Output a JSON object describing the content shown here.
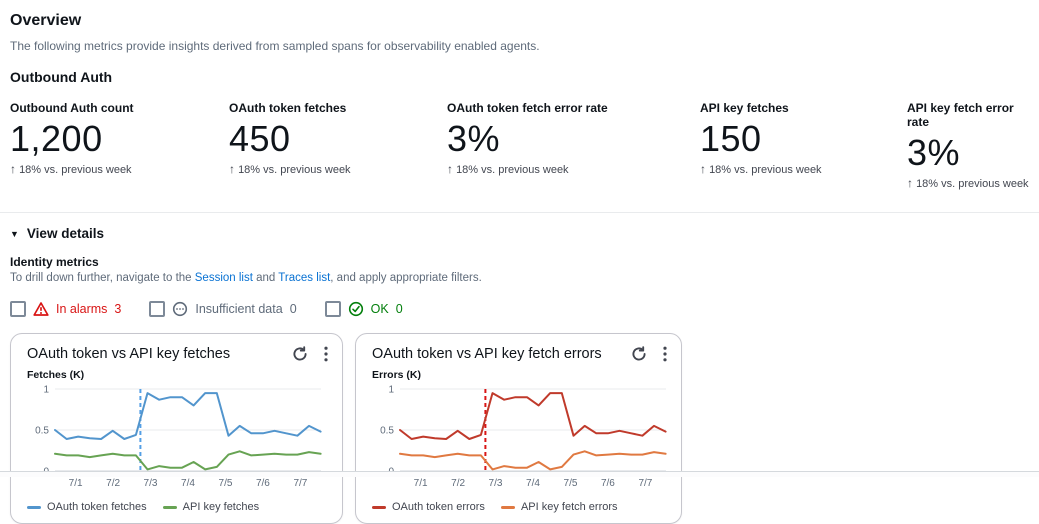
{
  "page": {
    "title": "Overview",
    "description": "The following metrics provide insights derived from sampled spans for observability enabled agents.",
    "section_title": "Outbound Auth"
  },
  "metrics": [
    {
      "label": "Outbound Auth count",
      "value": "1,200",
      "trend_arrow": "↑",
      "trend": "18% vs. previous week"
    },
    {
      "label": "OAuth token fetches",
      "value": "450",
      "trend_arrow": "↑",
      "trend": "18% vs. previous week"
    },
    {
      "label": "OAuth token fetch error rate",
      "value": "3%",
      "trend_arrow": "↑",
      "trend": "18% vs. previous week"
    },
    {
      "label": "API key fetches",
      "value": "150",
      "trend_arrow": "↑",
      "trend": "18% vs. previous week"
    },
    {
      "label": "API key fetch error rate",
      "value": "3%",
      "trend_arrow": "↑",
      "trend": "18% vs. previous week"
    }
  ],
  "details": {
    "expander_caret": "▼",
    "expander_label": "View details",
    "subsection_title": "Identity metrics",
    "drill_prefix": "To drill down further, navigate to the ",
    "link_session": "Session list",
    "drill_and": " and ",
    "link_traces": "Traces list",
    "drill_suffix": ", and apply appropriate filters."
  },
  "filters": [
    {
      "label": "In alarms",
      "count": "3",
      "color": "#d91515"
    },
    {
      "label": "Insufficient data",
      "count": "0",
      "color": "#5f6b7a"
    },
    {
      "label": "OK",
      "count": "0",
      "color": "#037f0c"
    }
  ],
  "chart_data": [
    {
      "type": "line",
      "title": "OAuth token vs API key fetches",
      "ylabel": "Fetches (K)",
      "ylim": [
        0,
        1
      ],
      "yticks": [
        0,
        0.5,
        1
      ],
      "xlim": [
        0.45,
        7.55
      ],
      "xticks": [
        1,
        2,
        3,
        4,
        5,
        6,
        7
      ],
      "xtick_labels": [
        "7/1",
        "7/2",
        "7/3",
        "7/4",
        "7/5",
        "7/6",
        "7/7"
      ],
      "grid": true,
      "legend_position": "bottom",
      "threshold_x": 2.73,
      "threshold_color": "#539fe5",
      "x": [
        0.45,
        0.76,
        1.07,
        1.38,
        1.68,
        1.99,
        2.3,
        2.61,
        2.92,
        3.23,
        3.53,
        3.84,
        4.15,
        4.46,
        4.77,
        5.08,
        5.38,
        5.69,
        6.0,
        6.31,
        6.62,
        6.92,
        7.23,
        7.54
      ],
      "series": [
        {
          "name": "OAuth token fetches",
          "color": "#5295cd",
          "values": [
            0.5,
            0.39,
            0.42,
            0.4,
            0.39,
            0.49,
            0.39,
            0.44,
            0.95,
            0.87,
            0.9,
            0.9,
            0.8,
            0.95,
            0.95,
            0.43,
            0.55,
            0.46,
            0.46,
            0.49,
            0.46,
            0.43,
            0.55,
            0.48
          ]
        },
        {
          "name": "API key fetches",
          "color": "#67a353",
          "values": [
            0.21,
            0.19,
            0.19,
            0.17,
            0.19,
            0.21,
            0.19,
            0.19,
            0.02,
            0.06,
            0.04,
            0.04,
            0.11,
            0.02,
            0.05,
            0.2,
            0.24,
            0.19,
            0.2,
            0.21,
            0.2,
            0.2,
            0.23,
            0.21
          ]
        }
      ]
    },
    {
      "type": "line",
      "title": "OAuth token vs API key fetch errors",
      "ylabel": "Errors (K)",
      "ylim": [
        0,
        1
      ],
      "yticks": [
        0,
        0.5,
        1
      ],
      "xlim": [
        0.45,
        7.55
      ],
      "xticks": [
        1,
        2,
        3,
        4,
        5,
        6,
        7
      ],
      "xtick_labels": [
        "7/1",
        "7/2",
        "7/3",
        "7/4",
        "7/5",
        "7/6",
        "7/7"
      ],
      "grid": true,
      "legend_position": "bottom",
      "threshold_x": 2.73,
      "threshold_color": "#d91515",
      "x": [
        0.45,
        0.76,
        1.07,
        1.38,
        1.68,
        1.99,
        2.3,
        2.61,
        2.92,
        3.23,
        3.53,
        3.84,
        4.15,
        4.46,
        4.77,
        5.08,
        5.38,
        5.69,
        6.0,
        6.31,
        6.62,
        6.92,
        7.23,
        7.54
      ],
      "series": [
        {
          "name": "OAuth token errors",
          "color": "#c03a2b",
          "values": [
            0.5,
            0.39,
            0.42,
            0.4,
            0.39,
            0.49,
            0.39,
            0.44,
            0.95,
            0.87,
            0.9,
            0.9,
            0.8,
            0.95,
            0.95,
            0.43,
            0.55,
            0.46,
            0.46,
            0.49,
            0.46,
            0.43,
            0.55,
            0.48
          ]
        },
        {
          "name": "API key fetch errors",
          "color": "#e07941",
          "values": [
            0.21,
            0.19,
            0.19,
            0.17,
            0.19,
            0.21,
            0.19,
            0.19,
            0.02,
            0.06,
            0.04,
            0.04,
            0.11,
            0.02,
            0.05,
            0.2,
            0.24,
            0.19,
            0.2,
            0.21,
            0.2,
            0.2,
            0.23,
            0.21
          ]
        }
      ]
    }
  ]
}
